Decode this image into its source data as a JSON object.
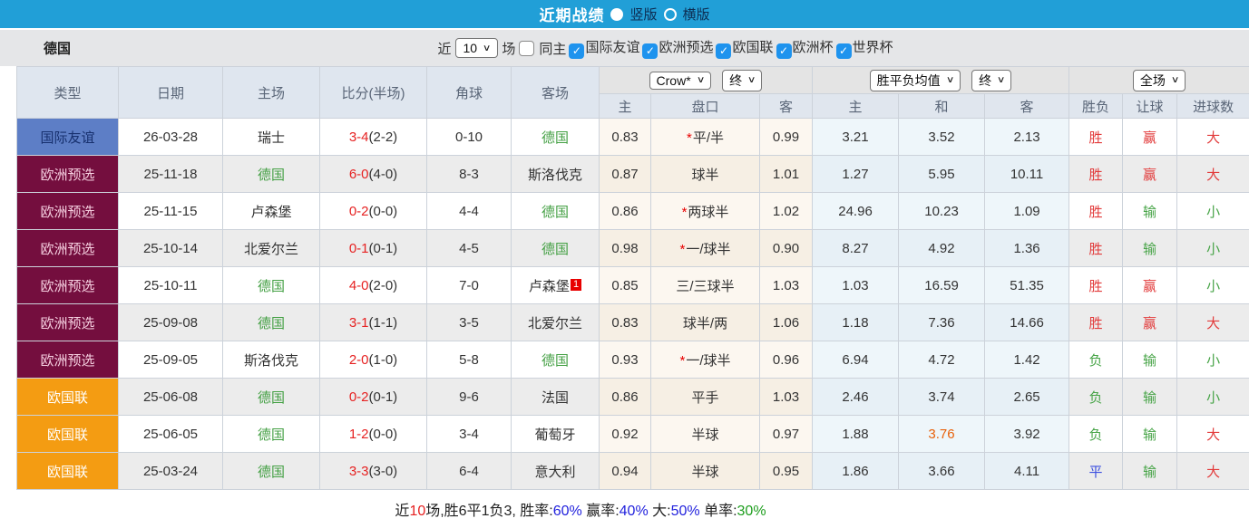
{
  "titlebar": {
    "title": "近期战绩",
    "options": [
      {
        "label": "竖版",
        "selected": true
      },
      {
        "label": "横版",
        "selected": false
      }
    ]
  },
  "filterbar": {
    "team": "德国",
    "recent_label": "近",
    "count_value": "10",
    "matches_label": "场",
    "same_home_label": "同主",
    "same_home_checked": false,
    "competitions": [
      {
        "label": "国际友谊",
        "checked": true
      },
      {
        "label": "欧洲预选",
        "checked": true
      },
      {
        "label": "欧国联",
        "checked": true
      },
      {
        "label": "欧洲杯",
        "checked": true
      },
      {
        "label": "世界杯",
        "checked": true
      }
    ]
  },
  "table": {
    "main_headers": [
      "类型",
      "日期",
      "主场",
      "比分(半场)",
      "角球",
      "客场"
    ],
    "groups": [
      {
        "dropdowns": [
          "Crow*",
          "终"
        ],
        "subs": [
          "主",
          "盘口",
          "客"
        ]
      },
      {
        "dropdowns": [
          "胜平负均值",
          "终"
        ],
        "subs": [
          "主",
          "和",
          "客"
        ]
      },
      {
        "dropdowns": [
          "全场"
        ],
        "subs": [
          "胜负",
          "让球",
          "进球数"
        ]
      }
    ],
    "rows": [
      {
        "type": "国际友谊",
        "type_key": "friendly",
        "date": "26-03-28",
        "home": "瑞士",
        "home_team": false,
        "score": "3-4",
        "half": "(2-2)",
        "corner": "0-10",
        "away": "德国",
        "away_team": true,
        "away_sup": "",
        "ah_home": "0.83",
        "ah_star": true,
        "ah_line": "平/半",
        "ah_away": "0.99",
        "avg_home": "3.21",
        "avg_draw": "3.52",
        "avg_away": "2.13",
        "avg_draw_hl": false,
        "res_wdl": "胜",
        "res_wdl_c": "red",
        "res_ah": "赢",
        "res_ah_c": "red",
        "res_ou": "大",
        "res_ou_c": "red"
      },
      {
        "type": "欧洲预选",
        "type_key": "qualifier",
        "date": "25-11-18",
        "home": "德国",
        "home_team": true,
        "score": "6-0",
        "half": "(4-0)",
        "corner": "8-3",
        "away": "斯洛伐克",
        "away_team": false,
        "away_sup": "",
        "ah_home": "0.87",
        "ah_star": false,
        "ah_line": "球半",
        "ah_away": "1.01",
        "avg_home": "1.27",
        "avg_draw": "5.95",
        "avg_away": "10.11",
        "avg_draw_hl": false,
        "res_wdl": "胜",
        "res_wdl_c": "red",
        "res_ah": "赢",
        "res_ah_c": "red",
        "res_ou": "大",
        "res_ou_c": "red"
      },
      {
        "type": "欧洲预选",
        "type_key": "qualifier",
        "date": "25-11-15",
        "home": "卢森堡",
        "home_team": false,
        "score": "0-2",
        "half": "(0-0)",
        "corner": "4-4",
        "away": "德国",
        "away_team": true,
        "away_sup": "",
        "ah_home": "0.86",
        "ah_star": true,
        "ah_line": "两球半",
        "ah_away": "1.02",
        "avg_home": "24.96",
        "avg_draw": "10.23",
        "avg_away": "1.09",
        "avg_draw_hl": false,
        "res_wdl": "胜",
        "res_wdl_c": "red",
        "res_ah": "输",
        "res_ah_c": "green",
        "res_ou": "小",
        "res_ou_c": "green"
      },
      {
        "type": "欧洲预选",
        "type_key": "qualifier",
        "date": "25-10-14",
        "home": "北爱尔兰",
        "home_team": false,
        "score": "0-1",
        "half": "(0-1)",
        "corner": "4-5",
        "away": "德国",
        "away_team": true,
        "away_sup": "",
        "ah_home": "0.98",
        "ah_star": true,
        "ah_line": "一/球半",
        "ah_away": "0.90",
        "avg_home": "8.27",
        "avg_draw": "4.92",
        "avg_away": "1.36",
        "avg_draw_hl": false,
        "res_wdl": "胜",
        "res_wdl_c": "red",
        "res_ah": "输",
        "res_ah_c": "green",
        "res_ou": "小",
        "res_ou_c": "green"
      },
      {
        "type": "欧洲预选",
        "type_key": "qualifier",
        "date": "25-10-11",
        "home": "德国",
        "home_team": true,
        "score": "4-0",
        "half": "(2-0)",
        "corner": "7-0",
        "away": "卢森堡",
        "away_team": false,
        "away_sup": "1",
        "ah_home": "0.85",
        "ah_star": false,
        "ah_line": "三/三球半",
        "ah_away": "1.03",
        "avg_home": "1.03",
        "avg_draw": "16.59",
        "avg_away": "51.35",
        "avg_draw_hl": false,
        "res_wdl": "胜",
        "res_wdl_c": "red",
        "res_ah": "赢",
        "res_ah_c": "red",
        "res_ou": "小",
        "res_ou_c": "green"
      },
      {
        "type": "欧洲预选",
        "type_key": "qualifier",
        "date": "25-09-08",
        "home": "德国",
        "home_team": true,
        "score": "3-1",
        "half": "(1-1)",
        "corner": "3-5",
        "away": "北爱尔兰",
        "away_team": false,
        "away_sup": "",
        "ah_home": "0.83",
        "ah_star": false,
        "ah_line": "球半/两",
        "ah_away": "1.06",
        "avg_home": "1.18",
        "avg_draw": "7.36",
        "avg_away": "14.66",
        "avg_draw_hl": false,
        "res_wdl": "胜",
        "res_wdl_c": "red",
        "res_ah": "赢",
        "res_ah_c": "red",
        "res_ou": "大",
        "res_ou_c": "red"
      },
      {
        "type": "欧洲预选",
        "type_key": "qualifier",
        "date": "25-09-05",
        "home": "斯洛伐克",
        "home_team": false,
        "score": "2-0",
        "half": "(1-0)",
        "corner": "5-8",
        "away": "德国",
        "away_team": true,
        "away_sup": "",
        "ah_home": "0.93",
        "ah_star": true,
        "ah_line": "一/球半",
        "ah_away": "0.96",
        "avg_home": "6.94",
        "avg_draw": "4.72",
        "avg_away": "1.42",
        "avg_draw_hl": false,
        "res_wdl": "负",
        "res_wdl_c": "green",
        "res_ah": "输",
        "res_ah_c": "green",
        "res_ou": "小",
        "res_ou_c": "green"
      },
      {
        "type": "欧国联",
        "type_key": "nations",
        "date": "25-06-08",
        "home": "德国",
        "home_team": true,
        "score": "0-2",
        "half": "(0-1)",
        "corner": "9-6",
        "away": "法国",
        "away_team": false,
        "away_sup": "",
        "ah_home": "0.86",
        "ah_star": false,
        "ah_line": "平手",
        "ah_away": "1.03",
        "avg_home": "2.46",
        "avg_draw": "3.74",
        "avg_away": "2.65",
        "avg_draw_hl": false,
        "res_wdl": "负",
        "res_wdl_c": "green",
        "res_ah": "输",
        "res_ah_c": "green",
        "res_ou": "小",
        "res_ou_c": "green"
      },
      {
        "type": "欧国联",
        "type_key": "nations",
        "date": "25-06-05",
        "home": "德国",
        "home_team": true,
        "score": "1-2",
        "half": "(0-0)",
        "corner": "3-4",
        "away": "葡萄牙",
        "away_team": false,
        "away_sup": "",
        "ah_home": "0.92",
        "ah_star": false,
        "ah_line": "半球",
        "ah_away": "0.97",
        "avg_home": "1.88",
        "avg_draw": "3.76",
        "avg_away": "3.92",
        "avg_draw_hl": true,
        "res_wdl": "负",
        "res_wdl_c": "green",
        "res_ah": "输",
        "res_ah_c": "green",
        "res_ou": "大",
        "res_ou_c": "red"
      },
      {
        "type": "欧国联",
        "type_key": "nations",
        "date": "25-03-24",
        "home": "德国",
        "home_team": true,
        "score": "3-3",
        "half": "(3-0)",
        "corner": "6-4",
        "away": "意大利",
        "away_team": false,
        "away_sup": "",
        "ah_home": "0.94",
        "ah_star": false,
        "ah_line": "半球",
        "ah_away": "0.95",
        "avg_home": "1.86",
        "avg_draw": "3.66",
        "avg_away": "4.11",
        "avg_draw_hl": false,
        "res_wdl": "平",
        "res_wdl_c": "blue",
        "res_ah": "输",
        "res_ah_c": "green",
        "res_ou": "大",
        "res_ou_c": "red"
      }
    ]
  },
  "footer": {
    "segments": [
      {
        "text": "近",
        "color": "black"
      },
      {
        "text": "10",
        "color": "red"
      },
      {
        "text": "场,胜6平1负3, 胜率:",
        "color": "black"
      },
      {
        "text": "60%",
        "color": "blue"
      },
      {
        "text": " 赢率:",
        "color": "black"
      },
      {
        "text": "40%",
        "color": "blue"
      },
      {
        "text": " 大:",
        "color": "black"
      },
      {
        "text": "50%",
        "color": "blue"
      },
      {
        "text": " 单率:",
        "color": "black"
      },
      {
        "text": "30%",
        "color": "green"
      }
    ]
  },
  "colors": {
    "titlebar_bg": "#219fd7",
    "friendly_badge": "#5d7ec6",
    "qualifier_badge": "#740e3e",
    "nations_badge": "#f49c12",
    "team_green": "#44a044",
    "score_red": "#e62222",
    "highlight_orange": "#e8610a",
    "checkbox_blue": "#1e93ee"
  }
}
